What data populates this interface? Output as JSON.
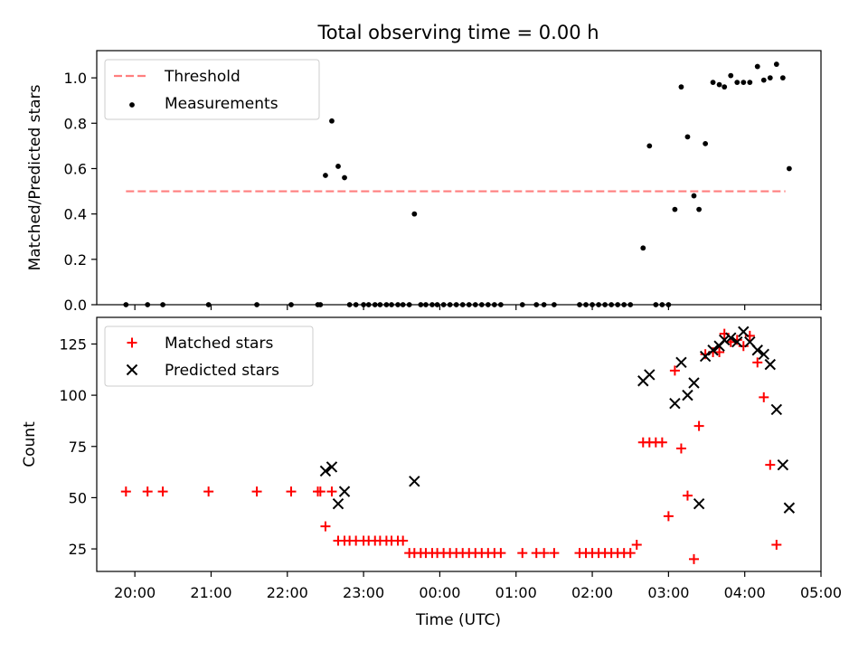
{
  "figure": {
    "title": "Total observing time = 0.00 h",
    "xlabel": "Time (UTC)",
    "x_ticks": [
      "20:00",
      "21:00",
      "22:00",
      "23:00",
      "00:00",
      "01:00",
      "02:00",
      "03:00",
      "04:00",
      "05:00"
    ]
  },
  "chart_data": [
    {
      "type": "scatter",
      "panel": "top",
      "xlabel": "",
      "ylabel": "Matched/Predicted stars",
      "xlim": [
        "19:30",
        "05:00"
      ],
      "ylim": [
        0,
        1.12
      ],
      "y_ticks": [
        "0.0",
        "0.2",
        "0.4",
        "0.6",
        "0.8",
        "1.0"
      ],
      "legend": {
        "placement": "top-left",
        "entries": [
          "Threshold",
          "Measurements"
        ]
      },
      "threshold": {
        "name": "Threshold",
        "value": 0.5,
        "x_start": "19:53",
        "x_end": "04:32",
        "color": "#ff7f7f",
        "style": "dashed"
      },
      "series": [
        {
          "name": "Measurements",
          "color": "#000000",
          "marker": "dot",
          "points": [
            [
              "19:53",
              0
            ],
            [
              "20:10",
              0
            ],
            [
              "20:22",
              0
            ],
            [
              "20:58",
              0
            ],
            [
              "21:36",
              0
            ],
            [
              "22:03",
              0
            ],
            [
              "22:24",
              0
            ],
            [
              "22:26",
              0
            ],
            [
              "22:30",
              0.57
            ],
            [
              "22:35",
              0.81
            ],
            [
              "22:40",
              0.61
            ],
            [
              "22:45",
              0.56
            ],
            [
              "22:49",
              0
            ],
            [
              "22:54",
              0
            ],
            [
              "23:00",
              0
            ],
            [
              "23:04",
              0
            ],
            [
              "23:09",
              0
            ],
            [
              "23:13",
              0
            ],
            [
              "23:18",
              0
            ],
            [
              "23:22",
              0
            ],
            [
              "23:27",
              0
            ],
            [
              "23:31",
              0
            ],
            [
              "23:36",
              0
            ],
            [
              "23:40",
              0.4
            ],
            [
              "23:45",
              0
            ],
            [
              "23:49",
              0
            ],
            [
              "23:54",
              0
            ],
            [
              "23:58",
              0
            ],
            [
              "00:03",
              0
            ],
            [
              "00:08",
              0
            ],
            [
              "00:13",
              0
            ],
            [
              "00:18",
              0
            ],
            [
              "00:23",
              0
            ],
            [
              "00:28",
              0
            ],
            [
              "00:33",
              0
            ],
            [
              "00:38",
              0
            ],
            [
              "00:43",
              0
            ],
            [
              "00:48",
              0
            ],
            [
              "01:05",
              0
            ],
            [
              "01:16",
              0
            ],
            [
              "01:22",
              0
            ],
            [
              "01:30",
              0
            ],
            [
              "01:50",
              0
            ],
            [
              "01:55",
              0
            ],
            [
              "02:00",
              0
            ],
            [
              "02:05",
              0
            ],
            [
              "02:10",
              0
            ],
            [
              "02:15",
              0
            ],
            [
              "02:20",
              0
            ],
            [
              "02:25",
              0
            ],
            [
              "02:30",
              0
            ],
            [
              "02:40",
              0.25
            ],
            [
              "02:45",
              0.7
            ],
            [
              "02:50",
              0
            ],
            [
              "02:55",
              0
            ],
            [
              "03:00",
              0
            ],
            [
              "03:05",
              0.42
            ],
            [
              "03:10",
              0.96
            ],
            [
              "03:15",
              0.74
            ],
            [
              "03:20",
              0.48
            ],
            [
              "03:24",
              0.42
            ],
            [
              "03:29",
              0.71
            ],
            [
              "03:35",
              0.98
            ],
            [
              "03:40",
              0.97
            ],
            [
              "03:44",
              0.96
            ],
            [
              "03:49",
              1.01
            ],
            [
              "03:54",
              0.98
            ],
            [
              "03:59",
              0.98
            ],
            [
              "04:04",
              0.98
            ],
            [
              "04:10",
              1.05
            ],
            [
              "04:15",
              0.99
            ],
            [
              "04:20",
              1.0
            ],
            [
              "04:25",
              1.06
            ],
            [
              "04:30",
              1.0
            ],
            [
              "04:35",
              0.6
            ]
          ]
        }
      ]
    },
    {
      "type": "scatter",
      "panel": "bottom",
      "xlabel": "Time (UTC)",
      "ylabel": "Count",
      "xlim": [
        "19:30",
        "05:00"
      ],
      "ylim": [
        14,
        138
      ],
      "y_ticks": [
        "25",
        "50",
        "75",
        "100",
        "125"
      ],
      "legend": {
        "placement": "top-left",
        "entries": [
          "Matched stars",
          "Predicted stars"
        ]
      },
      "series": [
        {
          "name": "Matched stars",
          "color": "#ff0000",
          "marker": "plus",
          "points": [
            [
              "19:53",
              53
            ],
            [
              "20:10",
              53
            ],
            [
              "20:22",
              53
            ],
            [
              "20:58",
              53
            ],
            [
              "21:36",
              53
            ],
            [
              "22:03",
              53
            ],
            [
              "22:24",
              53
            ],
            [
              "22:26",
              53
            ],
            [
              "22:30",
              36
            ],
            [
              "22:35",
              53
            ],
            [
              "22:40",
              29
            ],
            [
              "22:45",
              29
            ],
            [
              "22:49",
              29
            ],
            [
              "22:54",
              29
            ],
            [
              "23:00",
              29
            ],
            [
              "23:04",
              29
            ],
            [
              "23:09",
              29
            ],
            [
              "23:13",
              29
            ],
            [
              "23:18",
              29
            ],
            [
              "23:22",
              29
            ],
            [
              "23:27",
              29
            ],
            [
              "23:31",
              29
            ],
            [
              "23:36",
              23
            ],
            [
              "23:40",
              23
            ],
            [
              "23:45",
              23
            ],
            [
              "23:49",
              23
            ],
            [
              "23:54",
              23
            ],
            [
              "23:58",
              23
            ],
            [
              "00:03",
              23
            ],
            [
              "00:08",
              23
            ],
            [
              "00:13",
              23
            ],
            [
              "00:18",
              23
            ],
            [
              "00:23",
              23
            ],
            [
              "00:28",
              23
            ],
            [
              "00:33",
              23
            ],
            [
              "00:38",
              23
            ],
            [
              "00:43",
              23
            ],
            [
              "00:48",
              23
            ],
            [
              "01:05",
              23
            ],
            [
              "01:16",
              23
            ],
            [
              "01:22",
              23
            ],
            [
              "01:30",
              23
            ],
            [
              "01:50",
              23
            ],
            [
              "01:55",
              23
            ],
            [
              "02:00",
              23
            ],
            [
              "02:05",
              23
            ],
            [
              "02:10",
              23
            ],
            [
              "02:15",
              23
            ],
            [
              "02:20",
              23
            ],
            [
              "02:25",
              23
            ],
            [
              "02:30",
              23
            ],
            [
              "02:35",
              27
            ],
            [
              "02:40",
              77
            ],
            [
              "02:45",
              77
            ],
            [
              "02:50",
              77
            ],
            [
              "02:55",
              77
            ],
            [
              "03:00",
              41
            ],
            [
              "03:05",
              112
            ],
            [
              "03:10",
              74
            ],
            [
              "03:15",
              51
            ],
            [
              "03:20",
              20
            ],
            [
              "03:24",
              85
            ],
            [
              "03:29",
              120
            ],
            [
              "03:35",
              121
            ],
            [
              "03:40",
              121
            ],
            [
              "03:44",
              130
            ],
            [
              "03:49",
              126
            ],
            [
              "03:54",
              127
            ],
            [
              "03:59",
              124
            ],
            [
              "04:04",
              129
            ],
            [
              "04:10",
              116
            ],
            [
              "04:15",
              99
            ],
            [
              "04:20",
              66
            ],
            [
              "04:25",
              27
            ]
          ]
        },
        {
          "name": "Predicted stars",
          "color": "#000000",
          "marker": "x",
          "points": [
            [
              "22:30",
              63
            ],
            [
              "22:35",
              65
            ],
            [
              "22:40",
              47
            ],
            [
              "22:45",
              53
            ],
            [
              "23:40",
              58
            ],
            [
              "02:40",
              107
            ],
            [
              "02:45",
              110
            ],
            [
              "03:05",
              96
            ],
            [
              "03:10",
              116
            ],
            [
              "03:15",
              100
            ],
            [
              "03:20",
              106
            ],
            [
              "03:24",
              47
            ],
            [
              "03:29",
              119
            ],
            [
              "03:35",
              122
            ],
            [
              "03:40",
              124
            ],
            [
              "03:44",
              127
            ],
            [
              "03:49",
              128
            ],
            [
              "03:54",
              126
            ],
            [
              "03:59",
              131
            ],
            [
              "04:04",
              126
            ],
            [
              "04:10",
              122
            ],
            [
              "04:15",
              120
            ],
            [
              "04:20",
              115
            ],
            [
              "04:25",
              93
            ],
            [
              "04:30",
              66
            ],
            [
              "04:35",
              45
            ]
          ]
        }
      ]
    }
  ]
}
